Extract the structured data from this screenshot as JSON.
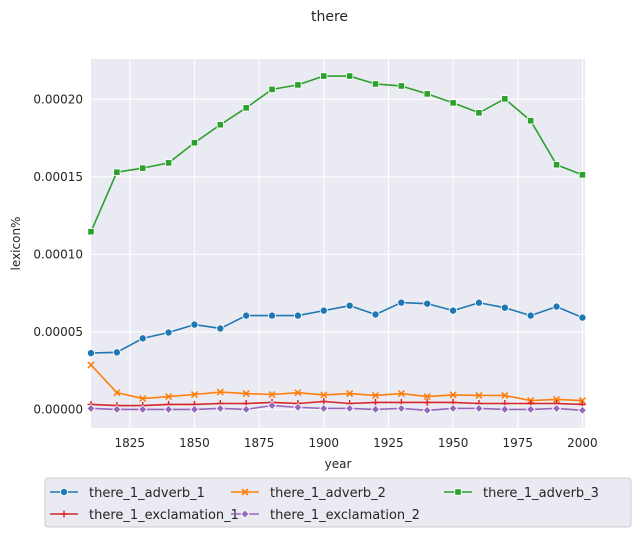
{
  "chart_data": {
    "type": "line",
    "title": "there",
    "xlabel": "year",
    "ylabel": "lexicon%",
    "xlim": [
      1810,
      2001
    ],
    "ylim": [
      -1.2e-05,
      0.000226
    ],
    "x_ticks": [
      1825,
      1850,
      1875,
      1900,
      1925,
      1950,
      1975,
      2000
    ],
    "x_tick_labels": [
      "1825",
      "1850",
      "1875",
      "1900",
      "1925",
      "1950",
      "1975",
      "2000"
    ],
    "y_ticks": [
      0.0,
      5e-05,
      0.0001,
      0.00015,
      0.0002
    ],
    "y_tick_labels": [
      "0.00000",
      "0.00005",
      "0.00010",
      "0.00015",
      "0.00020"
    ],
    "grid": true,
    "legend_placement": "bottom, 3 columns",
    "x": [
      1810,
      1820,
      1830,
      1840,
      1850,
      1860,
      1870,
      1880,
      1890,
      1900,
      1910,
      1920,
      1930,
      1940,
      1950,
      1960,
      1970,
      1980,
      1990,
      2000
    ],
    "series": [
      {
        "name": "there_1_adverb_1",
        "color": "#1f77b4",
        "marker": "circle",
        "values": [
          3.63e-05,
          3.68e-05,
          4.58e-05,
          4.96e-05,
          5.47e-05,
          5.22e-05,
          6.05e-05,
          6.05e-05,
          6.05e-05,
          6.37e-05,
          6.69e-05,
          6.12e-05,
          6.89e-05,
          6.82e-05,
          6.37e-05,
          6.88e-05,
          6.56e-05,
          6.05e-05,
          6.63e-05,
          5.92e-05
        ]
      },
      {
        "name": "there_1_adverb_2",
        "color": "#ff7f0e",
        "marker": "x",
        "values": [
          2.87e-05,
          1.08e-05,
          7e-06,
          8.3e-06,
          9.6e-06,
          1.12e-05,
          1.02e-05,
          9.6e-06,
          1.08e-05,
          9.3e-06,
          1.02e-05,
          9e-06,
          1.02e-05,
          8.3e-06,
          9.3e-06,
          9e-06,
          9e-06,
          5.7e-06,
          6.4e-06,
          5.7e-06
        ]
      },
      {
        "name": "there_1_adverb_3",
        "color": "#2ca02c",
        "marker": "square",
        "values": [
          0.0001146,
          0.000153,
          0.0001556,
          0.000159,
          0.000172,
          0.0001836,
          0.0001945,
          0.0002064,
          0.0002093,
          0.000215,
          0.000215,
          0.0002099,
          0.0002086,
          0.0002035,
          0.0001977,
          0.0001913,
          0.0002003,
          0.0001862,
          0.0001578,
          0.0001513
        ]
      },
      {
        "name": "there_1_exclamation_1",
        "color": "#d62728",
        "marker": "plus",
        "values": [
          3.2e-06,
          2.5e-06,
          2.5e-06,
          3.2e-06,
          3.2e-06,
          3.8e-06,
          3.8e-06,
          4.5e-06,
          3.8e-06,
          5.1e-06,
          3.8e-06,
          4.5e-06,
          4.5e-06,
          4.5e-06,
          4.5e-06,
          3.8e-06,
          3.8e-06,
          3.8e-06,
          3.8e-06,
          3.2e-06
        ]
      },
      {
        "name": "there_1_exclamation_2",
        "color": "#9467bd",
        "marker": "diamond",
        "values": [
          6e-07,
          0.0,
          0.0,
          0.0,
          0.0,
          6e-07,
          0.0,
          2.5e-06,
          1.3e-06,
          6e-07,
          6e-07,
          0.0,
          6e-07,
          -6e-07,
          6e-07,
          6e-07,
          0.0,
          0.0,
          6e-07,
          -6e-07
        ]
      }
    ]
  }
}
